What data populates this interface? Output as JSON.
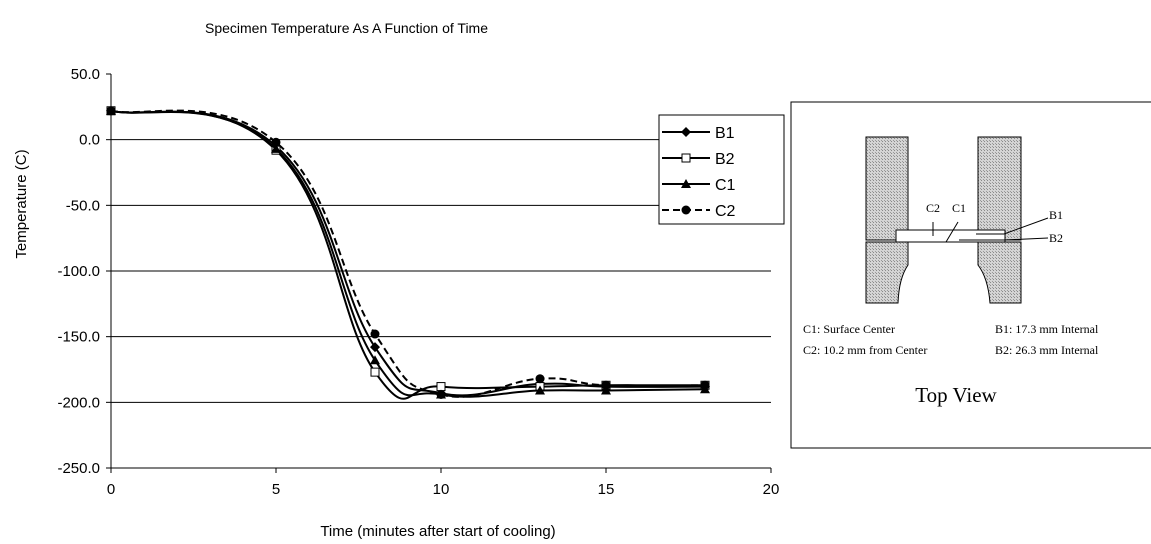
{
  "chart_data": {
    "type": "line",
    "title": "Specimen Temperature As A Function of Time",
    "xlabel": "Time (minutes after start of cooling)",
    "ylabel": "Temperature (C)",
    "xlim": [
      0,
      20
    ],
    "ylim": [
      -250,
      50
    ],
    "x_ticks": [
      0,
      5,
      10,
      15,
      20
    ],
    "y_ticks": [
      50.0,
      0.0,
      -50.0,
      -100.0,
      -150.0,
      -200.0,
      -250.0
    ],
    "y_tick_labels": [
      "50.0",
      "0.0",
      "-50.0",
      "-100.0",
      "-150.0",
      "-200.0",
      "-250.0"
    ],
    "grid": "horizontal",
    "legend_position": "top-right",
    "series": [
      {
        "name": "B1",
        "marker": "diamond",
        "line": "solid",
        "x": [
          0,
          5,
          8,
          10,
          13,
          15,
          18
        ],
        "y": [
          22,
          -5,
          -158,
          -193,
          -186,
          -188,
          -188
        ]
      },
      {
        "name": "B2",
        "marker": "square-open",
        "line": "solid",
        "x": [
          0,
          5,
          8,
          10,
          13,
          15,
          18
        ],
        "y": [
          22,
          -8,
          -177,
          -188,
          -188,
          -187,
          -187
        ]
      },
      {
        "name": "C1",
        "marker": "triangle",
        "line": "solid",
        "x": [
          0,
          5,
          8,
          10,
          13,
          15,
          18
        ],
        "y": [
          22,
          -7,
          -168,
          -194,
          -191,
          -191,
          -190
        ]
      },
      {
        "name": "C2",
        "marker": "circle",
        "line": "dashed",
        "x": [
          0,
          5,
          8,
          10,
          13,
          15,
          18
        ],
        "y": [
          22,
          -2,
          -148,
          -194,
          -182,
          -187,
          -187
        ]
      }
    ]
  },
  "diagram": {
    "label_c2": "C2",
    "label_c1": "C1",
    "label_b1": "B1",
    "label_b2": "B2",
    "legend_c1": "C1: Surface Center",
    "legend_c2": "C2: 10.2 mm from Center",
    "legend_b1": "B1: 17.3 mm Internal",
    "legend_b2": "B2: 26.3 mm Internal",
    "caption": "Top View",
    "fill_color": "#c8c8c8"
  }
}
